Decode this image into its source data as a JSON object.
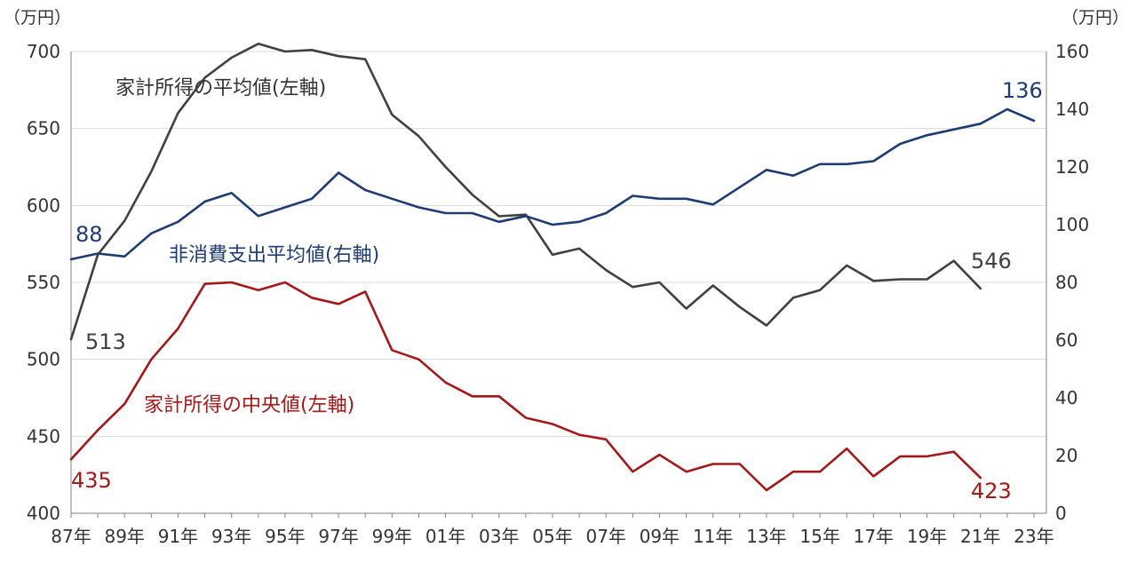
{
  "chart_data": {
    "type": "line",
    "left_axis_unit": "（万円）",
    "right_axis_unit": "（万円）",
    "left_axis": {
      "min": 400,
      "max": 700,
      "ticks": [
        400,
        450,
        500,
        550,
        600,
        650,
        700
      ]
    },
    "right_axis": {
      "min": 0,
      "max": 160,
      "ticks": [
        0,
        20,
        40,
        60,
        80,
        100,
        120,
        140,
        160
      ]
    },
    "x": [
      "87年",
      "88年",
      "89年",
      "90年",
      "91年",
      "92年",
      "93年",
      "94年",
      "95年",
      "96年",
      "97年",
      "98年",
      "99年",
      "00年",
      "01年",
      "02年",
      "03年",
      "04年",
      "05年",
      "06年",
      "07年",
      "08年",
      "09年",
      "10年",
      "11年",
      "12年",
      "13年",
      "14年",
      "15年",
      "16年",
      "17年",
      "18年",
      "19年",
      "20年",
      "21年",
      "22年",
      "23年"
    ],
    "x_tick_labels": [
      "87年",
      "89年",
      "91年",
      "93年",
      "95年",
      "97年",
      "99年",
      "01年",
      "03年",
      "05年",
      "07年",
      "09年",
      "11年",
      "13年",
      "15年",
      "17年",
      "19年",
      "21年",
      "23年"
    ],
    "gridlines": "horizontal",
    "series": [
      {
        "name": "家計所得の平均値(左軸)",
        "axis": "left",
        "color": "#404040",
        "values": [
          513,
          568,
          590,
          622,
          660,
          683,
          696,
          705,
          700,
          701,
          697,
          695,
          659,
          645,
          625,
          607,
          593,
          594,
          568,
          572,
          558,
          547,
          550,
          533,
          548,
          534,
          522,
          540,
          545,
          561,
          551,
          552,
          552,
          564,
          546,
          null,
          null
        ],
        "end_labels": {
          "first": "513",
          "last": "546"
        }
      },
      {
        "name": "家計所得の中央値(左軸)",
        "axis": "left",
        "color": "#A31818",
        "values": [
          435,
          454,
          471,
          500,
          520,
          549,
          550,
          545,
          550,
          540,
          536,
          544,
          506,
          500,
          485,
          476,
          476,
          462,
          458,
          451,
          448,
          427,
          438,
          427,
          432,
          432,
          415,
          427,
          427,
          442,
          424,
          437,
          437,
          440,
          423,
          null,
          null
        ],
        "end_labels": {
          "first": "435",
          "last": "423"
        }
      },
      {
        "name": "非消費支出平均値(右軸)",
        "axis": "right",
        "color": "#1F3B73",
        "values": [
          88,
          90,
          89,
          97,
          101,
          108,
          111,
          103,
          106,
          109,
          118,
          112,
          109,
          106,
          104,
          104,
          101,
          103,
          100,
          101,
          104,
          110,
          109,
          109,
          107,
          113,
          119,
          117,
          121,
          121,
          122,
          128,
          131,
          133,
          135,
          140,
          136
        ],
        "end_labels": {
          "first": "88",
          "last": "136"
        }
      }
    ],
    "annotations": {
      "mean_label": "家計所得の平均値(左軸)",
      "median_label": "家計所得の中央値(左軸)",
      "nonconsumption_label": "非消費支出平均値(右軸)"
    }
  },
  "colors": {
    "mean": "#404040",
    "median": "#A31818",
    "nonconsumption": "#1F3B73",
    "grid": "#D9D9D9",
    "axis": "#808080"
  }
}
